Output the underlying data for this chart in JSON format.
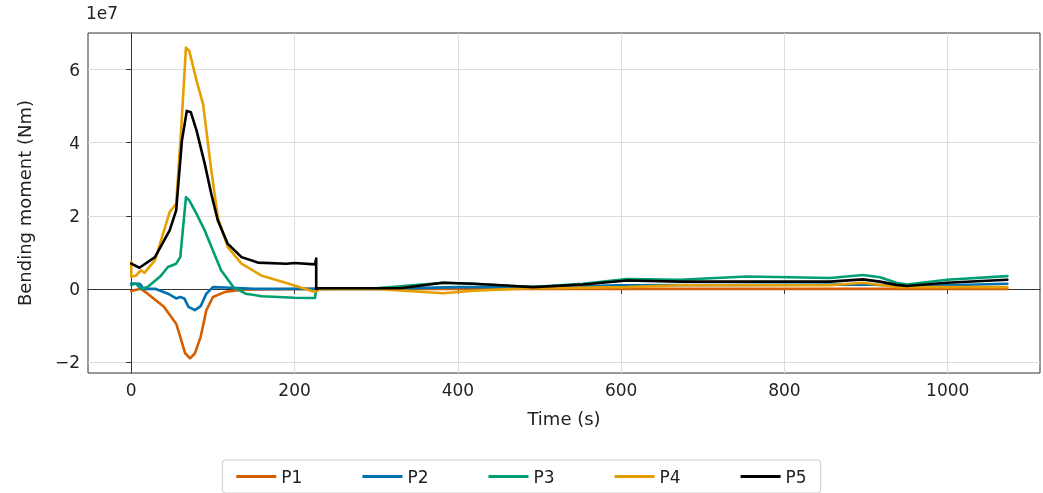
{
  "chart_data": {
    "type": "line",
    "xlabel": "Time (s)",
    "ylabel": "Bending moment (Nm)",
    "annotations": [
      "1e7"
    ],
    "xlim": [
      -53,
      1113
    ],
    "ylim": [
      -2.3,
      7.0
    ],
    "xticks": [
      0,
      200,
      400,
      600,
      800,
      1000
    ],
    "yticks": [
      -2,
      0,
      2,
      4,
      6
    ],
    "grid": true,
    "legend": "bottom",
    "marker": "none",
    "line_style": "solid",
    "series": [
      {
        "name": "P1",
        "color": "#d55e00",
        "x": [
          0,
          10,
          12,
          20,
          40,
          55,
          60,
          66,
          72,
          78,
          85,
          92,
          100,
          115,
          135,
          226,
          300,
          400,
          600,
          800,
          1000,
          1073
        ],
        "values": [
          -0.06,
          0,
          0,
          -0.13,
          -0.49,
          -0.95,
          -1.31,
          -1.76,
          -1.9,
          -1.76,
          -1.31,
          -0.58,
          -0.22,
          -0.08,
          -0.02,
          0,
          0,
          0,
          0,
          0,
          0,
          0
        ]
      },
      {
        "name": "P2",
        "color": "#0072b2",
        "x": [
          0,
          10,
          12,
          15,
          30,
          45,
          55,
          60,
          65,
          70,
          78,
          85,
          92,
          100,
          115,
          150,
          226,
          300,
          400,
          500,
          600,
          900,
          950,
          1000,
          1073
        ],
        "values": [
          0.15,
          0.14,
          0.1,
          0,
          0,
          -0.13,
          -0.26,
          -0.22,
          -0.26,
          -0.49,
          -0.58,
          -0.47,
          -0.13,
          0.05,
          0.04,
          0,
          0,
          0,
          0.05,
          0.05,
          0.1,
          0.12,
          0.08,
          0.1,
          0.14
        ]
      },
      {
        "name": "P3",
        "color": "#009e73",
        "x": [
          0,
          5,
          12,
          20,
          35,
          45,
          55,
          60,
          67,
          71,
          80,
          90,
          100,
          110,
          125,
          140,
          160,
          200,
          225,
          226,
          230,
          300,
          382,
          419,
          492,
          553,
          607,
          672,
          754,
          856,
          896,
          917,
          937,
          950,
          999,
          1073
        ],
        "values": [
          0.1,
          0.15,
          0,
          0.05,
          0.33,
          0.6,
          0.69,
          0.87,
          2.51,
          2.42,
          2.05,
          1.6,
          1.05,
          0.51,
          0.05,
          -0.13,
          -0.2,
          -0.24,
          -0.25,
          -0.08,
          0,
          0.02,
          0.17,
          0.14,
          0.05,
          0.14,
          0.27,
          0.25,
          0.34,
          0.3,
          0.38,
          0.32,
          0.17,
          0.12,
          0.25,
          0.35
        ]
      },
      {
        "name": "P4",
        "color": "#e69f00",
        "x": [
          0,
          0,
          6,
          12,
          16,
          29,
          47,
          55,
          61,
          67,
          71,
          80,
          88,
          98,
          106,
          118,
          135,
          159,
          192,
          224,
          233,
          300,
          382,
          419,
          492,
          607,
          672,
          754,
          856,
          896,
          937,
          1000,
          1073
        ],
        "values": [
          0.74,
          0.33,
          0.37,
          0.51,
          0.44,
          0.78,
          2.1,
          2.33,
          4.33,
          6.6,
          6.51,
          5.69,
          5.05,
          3.25,
          1.96,
          1.15,
          0.69,
          0.37,
          0.15,
          -0.08,
          0,
          0,
          -0.12,
          -0.05,
          0.02,
          0.05,
          0.1,
          0.1,
          0.1,
          0.17,
          0.05,
          0.05,
          0.05
        ]
      },
      {
        "name": "P5",
        "color": "#000000",
        "x": [
          0,
          10,
          29,
          47,
          55,
          62,
          68,
          73,
          80,
          90,
          98,
          106,
          118,
          135,
          155,
          190,
          200,
          225,
          226.5,
          226.5,
          230,
          329,
          382,
          419,
          492,
          553,
          607,
          672,
          754,
          856,
          896,
          917,
          937,
          950,
          999,
          1073
        ],
        "values": [
          0.69,
          0.58,
          0.87,
          1.6,
          2.15,
          4.05,
          4.87,
          4.83,
          4.33,
          3.42,
          2.6,
          1.87,
          1.24,
          0.87,
          0.72,
          0.69,
          0.71,
          0.67,
          0.83,
          0,
          0.02,
          0.02,
          0.17,
          0.14,
          0.05,
          0.12,
          0.23,
          0.2,
          0.2,
          0.2,
          0.26,
          0.2,
          0.11,
          0.08,
          0.17,
          0.25
        ]
      }
    ]
  }
}
